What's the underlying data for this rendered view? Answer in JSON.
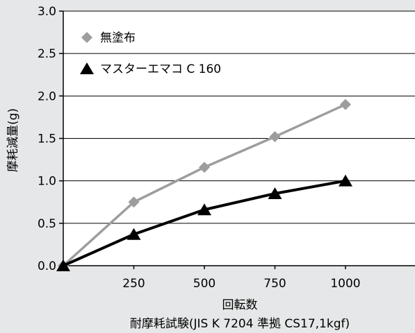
{
  "chart_data": {
    "type": "line",
    "x": [
      0,
      250,
      500,
      750,
      1000
    ],
    "series": [
      {
        "name": "無塗布",
        "values": [
          0,
          0.75,
          1.16,
          1.52,
          1.9
        ],
        "color": "#9d9d9d",
        "marker": "diamond"
      },
      {
        "name": "マスターエマコ C 160",
        "values": [
          0,
          0.37,
          0.66,
          0.85,
          1.0
        ],
        "color": "#000000",
        "marker": "triangle"
      }
    ],
    "xticks": [
      "250",
      "500",
      "750",
      "1000"
    ],
    "yticks": [
      "0.0",
      "0.5",
      "1.0",
      "1.5",
      "2.0",
      "2.5",
      "3.0"
    ],
    "xlabel": "回転数",
    "ylabel": "摩耗減量(g)",
    "caption": "耐摩耗試験(JIS K 7204 準拠 CS17,1kgf)",
    "xlim": [
      0,
      1200
    ],
    "ylim": [
      0,
      3.0
    ],
    "grid": "horizontal",
    "legend_position": "top-left"
  }
}
